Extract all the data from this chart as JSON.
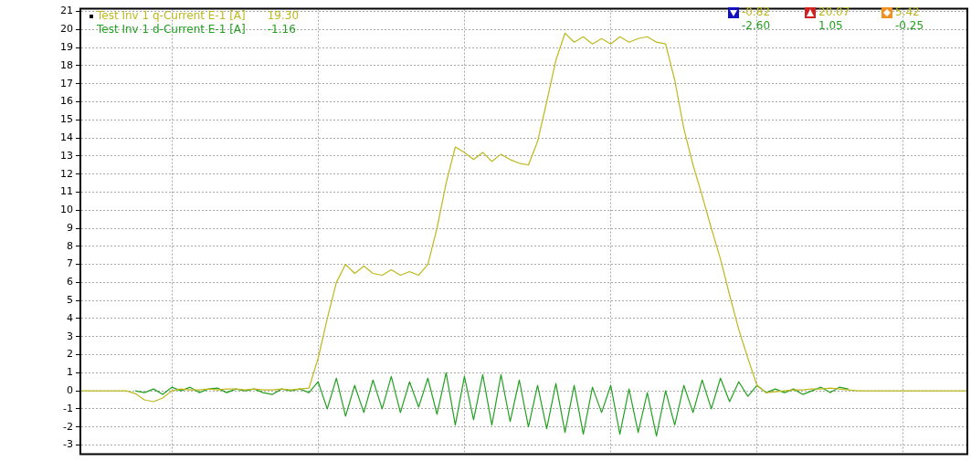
{
  "chart_data": {
    "type": "line",
    "categories": [
      null,
      null,
      null,
      null,
      null,
      null,
      null,
      null,
      null,
      null,
      null,
      null,
      null,
      null,
      null,
      null,
      null,
      null,
      null,
      null,
      null,
      null,
      null,
      null,
      null,
      null,
      null,
      null,
      null,
      null,
      null,
      null,
      null,
      null,
      null,
      null,
      null,
      null,
      null,
      null,
      null,
      null,
      null,
      null,
      null,
      null,
      null,
      null,
      null,
      null,
      null,
      null,
      null,
      null,
      null,
      null,
      null,
      null,
      null,
      null,
      null,
      null,
      null,
      null,
      null,
      null,
      null,
      null,
      null,
      null,
      null,
      null,
      null,
      null,
      null,
      null,
      null,
      null,
      null,
      null,
      null,
      null,
      null,
      null,
      null,
      null,
      null,
      null,
      null,
      null,
      null,
      null,
      null,
      null,
      null,
      null,
      null,
      null
    ],
    "ylim": [
      -3.4,
      21.15
    ],
    "yticks": [
      -3,
      -2,
      -1,
      0,
      1,
      2,
      3,
      4,
      5,
      6,
      7,
      8,
      9,
      10,
      11,
      12,
      13,
      14,
      15,
      16,
      17,
      18,
      19,
      20,
      21
    ],
    "tick_labels": "y",
    "grid": true,
    "legend": "top left",
    "marker": "none",
    "line_style": "solid",
    "annotations": [
      "19.30",
      "-1.16",
      "-0.82",
      "20.07",
      "5.42",
      "-2.60",
      "1.05",
      "-0.25"
    ],
    "series": [
      {
        "name": "Test Inv 1 q-Current E-1 [A]",
        "color": "#bdb81c",
        "values": [
          0,
          0,
          0,
          0,
          0,
          0,
          -0.15,
          -0.5,
          -0.6,
          -0.4,
          0,
          0.1,
          0.05,
          0.05,
          0.1,
          0.05,
          0.1,
          0.1,
          0.05,
          0.1,
          0.05,
          0.05,
          0.1,
          0.05,
          0.1,
          0.15,
          1.8,
          4,
          6,
          7,
          6.5,
          6.9,
          6.5,
          6.4,
          6.7,
          6.4,
          6.6,
          6.4,
          7,
          9,
          11.5,
          13.5,
          13.2,
          12.8,
          13.2,
          12.7,
          13.1,
          12.8,
          12.6,
          12.5,
          13.8,
          16,
          18.3,
          19.8,
          19.3,
          19.6,
          19.2,
          19.5,
          19.2,
          19.6,
          19.3,
          19.5,
          19.6,
          19.3,
          19.2,
          17.2,
          14.5,
          12.5,
          10.8,
          9,
          7.3,
          5.3,
          3.4,
          1.8,
          0.3,
          -0.1,
          -0.05,
          0,
          0.05,
          0.05,
          0.1,
          0.1,
          0.15,
          0.1,
          0.05,
          0,
          0,
          0,
          0,
          0,
          0,
          0,
          0,
          0,
          0,
          0,
          0,
          0
        ]
      },
      {
        "name": "Test Inv 1 d-Current E-1 [A]",
        "color": "#22a020",
        "values": [
          null,
          null,
          null,
          null,
          null,
          null,
          0,
          -0.1,
          0.1,
          -0.2,
          0.2,
          0,
          0.2,
          -0.1,
          0.1,
          0.15,
          -0.1,
          0.1,
          0,
          0.1,
          -0.1,
          -0.2,
          0.1,
          0,
          0.1,
          -0.1,
          0.5,
          -1,
          0.7,
          -1.4,
          0.3,
          -1.2,
          0.6,
          -1,
          0.8,
          -1.2,
          0.5,
          -0.9,
          0.7,
          -1.3,
          1,
          -1.9,
          0.8,
          -1.6,
          0.9,
          -1.9,
          0.9,
          -1.7,
          0.6,
          -2,
          0.3,
          -2.1,
          0.4,
          -2.3,
          0.3,
          -2.4,
          0.2,
          -1.2,
          0.3,
          -2.4,
          0.1,
          -2.3,
          -0.1,
          -2.5,
          0,
          -1.9,
          0.3,
          -1.2,
          0.6,
          -1,
          0.7,
          -0.6,
          0.5,
          -0.3,
          0.3,
          -0.1,
          0.1,
          -0.1,
          0.1,
          -0.2,
          0,
          0.2,
          -0.1,
          0.2,
          0.1,
          null,
          null,
          null,
          null,
          null,
          null,
          null,
          null,
          null,
          null,
          null,
          null,
          null
        ]
      }
    ]
  }
}
